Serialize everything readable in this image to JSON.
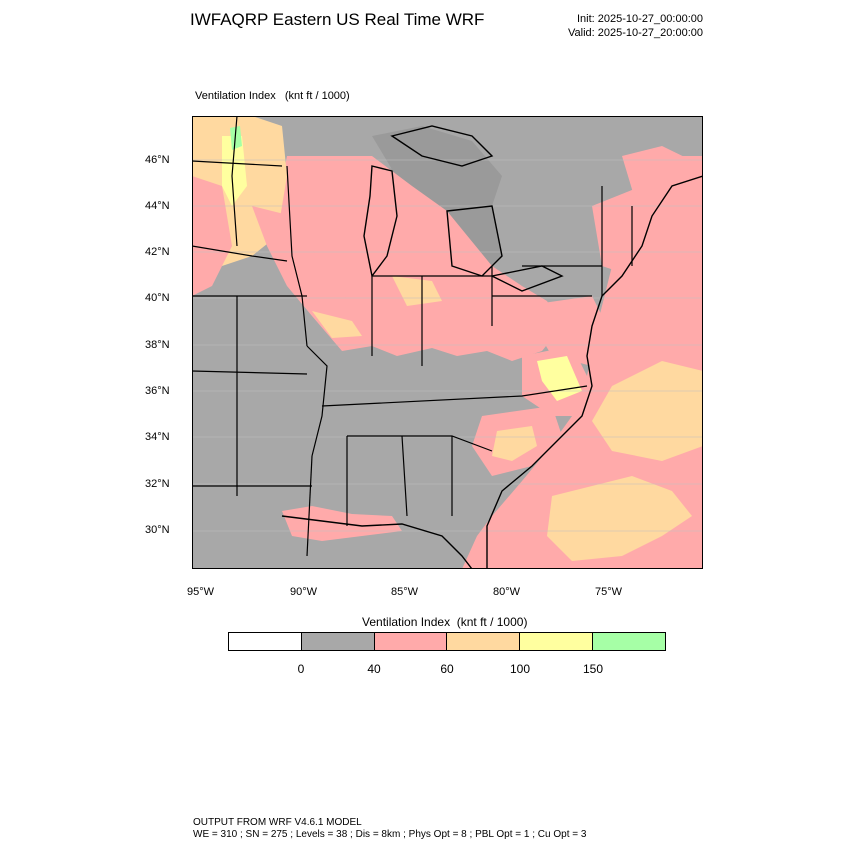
{
  "header": {
    "title": "IWFAQRP Eastern US Real Time WRF",
    "init": "Init: 2025-10-27_00:00:00",
    "valid": "Valid: 2025-10-27_20:00:00"
  },
  "map": {
    "field_label": "Ventilation Index   (knt ft / 1000)",
    "lat_labels": [
      "46°N",
      "44°N",
      "42°N",
      "40°N",
      "38°N",
      "36°N",
      "34°N",
      "32°N",
      "30°N"
    ],
    "lon_labels": [
      "95°W",
      "90°W",
      "85°W",
      "80°W",
      "75°W"
    ],
    "colors": {
      "ocean_low": "#a8a8a8",
      "land_low": "#a8a8a8",
      "pink": "#ffaaaa",
      "orange": "#ffd9a0",
      "yellow": "#ffff9f",
      "green": "#a6ffa6",
      "borders": "#000000"
    }
  },
  "colorbar": {
    "title": "Ventilation Index  (knt ft / 1000)",
    "swatches": [
      "#ffffff",
      "#a8a8a8",
      "#ffaaaa",
      "#ffd9a0",
      "#ffff9f",
      "#a6ffa6"
    ],
    "labels": [
      "0",
      "40",
      "60",
      "100",
      "150"
    ]
  },
  "footer": {
    "line1": "OUTPUT FROM WRF V4.6.1 MODEL",
    "line2": "WE = 310 ; SN = 275 ; Levels = 38 ; Dis = 8km ; Phys Opt = 8 ; PBL Opt = 1 ; Cu Opt = 3"
  }
}
